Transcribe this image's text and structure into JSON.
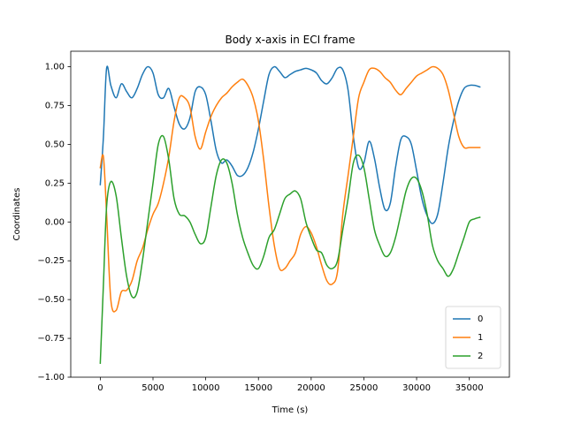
{
  "chart_data": {
    "type": "line",
    "title": "Body x-axis in ECI frame",
    "xlabel": "Time (s)",
    "ylabel": "Coordinates",
    "xlim": [
      -2800,
      38800
    ],
    "ylim": [
      -1.0,
      1.1
    ],
    "xticks": [
      0,
      5000,
      10000,
      15000,
      20000,
      25000,
      30000,
      35000
    ],
    "yticks": [
      -1.0,
      -0.75,
      -0.5,
      -0.25,
      0.0,
      0.25,
      0.5,
      0.75,
      1.0
    ],
    "xtick_labels": [
      "0",
      "5000",
      "10000",
      "15000",
      "20000",
      "25000",
      "30000",
      "35000"
    ],
    "ytick_labels": [
      "−1.00",
      "−0.75",
      "−0.50",
      "−0.25",
      "0.00",
      "0.25",
      "0.50",
      "0.75",
      "1.00"
    ],
    "grid": false,
    "legend_position": "lower-right",
    "series": [
      {
        "name": "0",
        "color": "#1f77b4",
        "x": [
          0,
          300,
          600,
          1000,
          1500,
          2000,
          2500,
          3000,
          3500,
          4000,
          4500,
          5000,
          5500,
          6000,
          6500,
          7000,
          7500,
          8000,
          8500,
          9000,
          9500,
          10000,
          10500,
          11000,
          11500,
          12000,
          12500,
          13000,
          13500,
          14000,
          14500,
          15000,
          15500,
          16000,
          16500,
          17000,
          17500,
          18000,
          18500,
          19000,
          19500,
          20000,
          20500,
          21000,
          21500,
          22000,
          22500,
          23000,
          23500,
          24000,
          24500,
          25000,
          25500,
          26000,
          26500,
          27000,
          27500,
          28000,
          28500,
          29000,
          29500,
          30000,
          30500,
          31000,
          31500,
          32000,
          32500,
          33000,
          33500,
          34000,
          34500,
          35000,
          35500,
          36000
        ],
        "values": [
          0.24,
          0.55,
          0.99,
          0.88,
          0.8,
          0.89,
          0.84,
          0.8,
          0.86,
          0.95,
          1.0,
          0.96,
          0.82,
          0.8,
          0.86,
          0.74,
          0.63,
          0.6,
          0.67,
          0.84,
          0.87,
          0.82,
          0.65,
          0.46,
          0.38,
          0.4,
          0.36,
          0.3,
          0.3,
          0.35,
          0.45,
          0.6,
          0.78,
          0.95,
          1.0,
          0.97,
          0.93,
          0.95,
          0.97,
          0.98,
          0.99,
          0.98,
          0.96,
          0.91,
          0.89,
          0.93,
          0.99,
          0.98,
          0.85,
          0.55,
          0.35,
          0.38,
          0.52,
          0.41,
          0.22,
          0.08,
          0.12,
          0.35,
          0.53,
          0.55,
          0.5,
          0.33,
          0.15,
          0.04,
          -0.01,
          0.05,
          0.25,
          0.48,
          0.65,
          0.78,
          0.86,
          0.88,
          0.88,
          0.87
        ]
      },
      {
        "name": "1",
        "color": "#ff7f0e",
        "x": [
          0,
          300,
          600,
          1000,
          1500,
          2000,
          2500,
          3000,
          3500,
          4000,
          4500,
          5000,
          5500,
          6000,
          6500,
          7000,
          7500,
          8000,
          8500,
          9000,
          9500,
          10000,
          10500,
          11000,
          11500,
          12000,
          12500,
          13000,
          13500,
          14000,
          14500,
          15000,
          15500,
          16000,
          16500,
          17000,
          17500,
          18000,
          18500,
          19000,
          19500,
          20000,
          20500,
          21000,
          21500,
          22000,
          22500,
          23000,
          23500,
          24000,
          24500,
          25000,
          25500,
          26000,
          26500,
          27000,
          27500,
          28000,
          28500,
          29000,
          29500,
          30000,
          30500,
          31000,
          31500,
          32000,
          32500,
          33000,
          33500,
          34000,
          34500,
          35000,
          35500,
          36000
        ],
        "values": [
          0.35,
          0.42,
          0.05,
          -0.5,
          -0.57,
          -0.45,
          -0.44,
          -0.38,
          -0.25,
          -0.17,
          -0.05,
          0.05,
          0.12,
          0.25,
          0.42,
          0.65,
          0.8,
          0.8,
          0.74,
          0.55,
          0.47,
          0.58,
          0.68,
          0.75,
          0.8,
          0.83,
          0.87,
          0.9,
          0.92,
          0.88,
          0.8,
          0.65,
          0.4,
          0.1,
          -0.15,
          -0.3,
          -0.3,
          -0.25,
          -0.2,
          -0.08,
          -0.03,
          -0.07,
          -0.16,
          -0.28,
          -0.38,
          -0.4,
          -0.32,
          0.05,
          0.3,
          0.55,
          0.8,
          0.9,
          0.98,
          0.99,
          0.97,
          0.93,
          0.9,
          0.85,
          0.82,
          0.86,
          0.9,
          0.94,
          0.96,
          0.98,
          1.0,
          0.99,
          0.95,
          0.85,
          0.7,
          0.55,
          0.48,
          0.48,
          0.48,
          0.48
        ]
      },
      {
        "name": "2",
        "color": "#2ca02c",
        "x": [
          0,
          300,
          600,
          1000,
          1500,
          2000,
          2500,
          3000,
          3500,
          4000,
          4500,
          5000,
          5500,
          6000,
          6500,
          7000,
          7500,
          8000,
          8500,
          9000,
          9500,
          10000,
          10500,
          11000,
          11500,
          12000,
          12500,
          13000,
          13500,
          14000,
          14500,
          15000,
          15500,
          16000,
          16500,
          17000,
          17500,
          18000,
          18500,
          19000,
          19500,
          20000,
          20500,
          21000,
          21500,
          22000,
          22500,
          23000,
          23500,
          24000,
          24500,
          25000,
          25500,
          26000,
          26500,
          27000,
          27500,
          28000,
          28500,
          29000,
          29500,
          30000,
          30500,
          31000,
          31500,
          32000,
          32500,
          33000,
          33500,
          34000,
          34500,
          35000,
          35500,
          36000
        ],
        "values": [
          -0.91,
          -0.4,
          0.1,
          0.26,
          0.17,
          -0.1,
          -0.35,
          -0.48,
          -0.45,
          -0.25,
          0.0,
          0.25,
          0.5,
          0.55,
          0.4,
          0.15,
          0.05,
          0.04,
          0.0,
          -0.08,
          -0.14,
          -0.1,
          0.1,
          0.3,
          0.4,
          0.38,
          0.25,
          0.05,
          -0.1,
          -0.2,
          -0.28,
          -0.3,
          -0.22,
          -0.1,
          -0.05,
          0.05,
          0.15,
          0.18,
          0.2,
          0.15,
          0.0,
          -0.1,
          -0.18,
          -0.2,
          -0.28,
          -0.3,
          -0.25,
          -0.05,
          0.15,
          0.38,
          0.43,
          0.35,
          0.15,
          -0.05,
          -0.15,
          -0.22,
          -0.2,
          -0.1,
          0.05,
          0.2,
          0.28,
          0.28,
          0.2,
          0.05,
          -0.15,
          -0.25,
          -0.3,
          -0.35,
          -0.3,
          -0.2,
          -0.1,
          0.0,
          0.02,
          0.03
        ]
      }
    ]
  }
}
